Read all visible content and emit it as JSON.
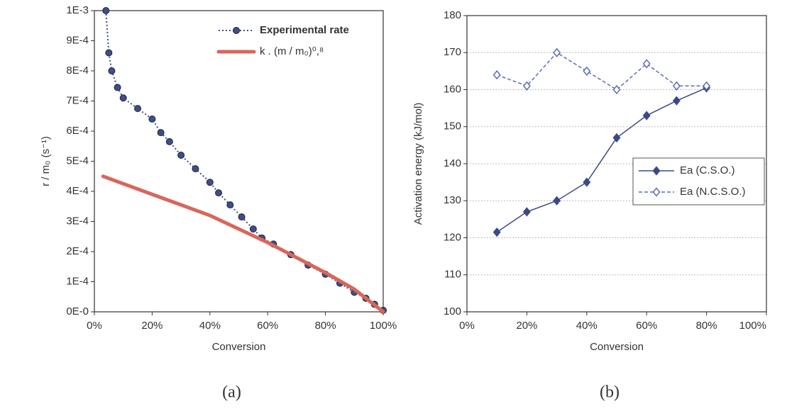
{
  "chart_data": [
    {
      "type": "line",
      "caption": "(a)",
      "xlabel": "Conversion",
      "ylabel": "r / m₀ (s⁻¹)",
      "xlim": [
        0,
        100
      ],
      "ylim": [
        0,
        0.001
      ],
      "xticks": [
        {
          "value": 0,
          "label": "0%"
        },
        {
          "value": 20,
          "label": "20%"
        },
        {
          "value": 40,
          "label": "40%"
        },
        {
          "value": 60,
          "label": "60%"
        },
        {
          "value": 80,
          "label": "80%"
        },
        {
          "value": 100,
          "label": "100%"
        }
      ],
      "yticks": [
        {
          "value": 0,
          "label": "0E-0"
        },
        {
          "value": 0.0001,
          "label": "1E-4"
        },
        {
          "value": 0.0002,
          "label": "2E-4"
        },
        {
          "value": 0.0003,
          "label": "3E-4"
        },
        {
          "value": 0.0004,
          "label": "4E-4"
        },
        {
          "value": 0.0005,
          "label": "5E-4"
        },
        {
          "value": 0.0006,
          "label": "6E-4"
        },
        {
          "value": 0.0007,
          "label": "7E-4"
        },
        {
          "value": 0.0008,
          "label": "8E-4"
        },
        {
          "value": 0.0009,
          "label": "9E-4"
        },
        {
          "value": 0.001,
          "label": "1E-3"
        }
      ],
      "grid": false,
      "legend": "top-right",
      "series": [
        {
          "name": "Experimental rate",
          "color": "#3d4f8a",
          "line_style": "dotted",
          "marker": "circle",
          "x": [
            4,
            5,
            6,
            8,
            10,
            15,
            20,
            23,
            26,
            30,
            35,
            40,
            43,
            47,
            51,
            55,
            58,
            62,
            68,
            74,
            80,
            85,
            90,
            94,
            97,
            100
          ],
          "values": [
            0.001,
            0.00086,
            0.0008,
            0.000745,
            0.00071,
            0.000675,
            0.00064,
            0.000595,
            0.000565,
            0.00052,
            0.000475,
            0.00043,
            0.000395,
            0.000355,
            0.000315,
            0.000275,
            0.000245,
            0.000225,
            0.00019,
            0.000155,
            0.000125,
            9.5e-05,
            6.5e-05,
            4.5e-05,
            2.5e-05,
            5e-06
          ]
        },
        {
          "name": "k . (m / m₀)⁰,⁸",
          "color": "#d9665a",
          "line_style": "thick",
          "marker": "none",
          "x": [
            3,
            20,
            40,
            60,
            80,
            90,
            100
          ],
          "values": [
            0.00045,
            0.00039,
            0.00032,
            0.00023,
            0.00013,
            7.5e-05,
            0
          ]
        }
      ]
    },
    {
      "type": "line",
      "caption": "(b)",
      "xlabel": "Conversion",
      "ylabel": "Activation energy (kJ/mol)",
      "xlim": [
        0,
        100
      ],
      "ylim": [
        100,
        180
      ],
      "xticks": [
        {
          "value": 0,
          "label": "0%"
        },
        {
          "value": 20,
          "label": "20%"
        },
        {
          "value": 40,
          "label": "40%"
        },
        {
          "value": 60,
          "label": "60%"
        },
        {
          "value": 80,
          "label": "80%"
        },
        {
          "value": 100,
          "label": "100%"
        }
      ],
      "yticks": [
        100,
        110,
        120,
        130,
        140,
        150,
        160,
        170,
        180
      ],
      "grid": true,
      "legend": "right",
      "series": [
        {
          "name": "Ea (C.S.O.)",
          "color": "#3b4a86",
          "line_style": "solid",
          "marker": "diamond",
          "x": [
            10,
            20,
            30,
            40,
            50,
            60,
            70,
            80
          ],
          "values": [
            121.5,
            127,
            130,
            135,
            147,
            153,
            157,
            160.5
          ]
        },
        {
          "name": "Ea (N.C.S.O.)",
          "color": "#5a6fb0",
          "line_style": "dashed",
          "marker": "open-diamond",
          "x": [
            10,
            20,
            30,
            40,
            50,
            60,
            70,
            80
          ],
          "values": [
            164,
            161,
            170,
            165,
            160,
            167,
            161,
            161
          ]
        }
      ]
    }
  ]
}
